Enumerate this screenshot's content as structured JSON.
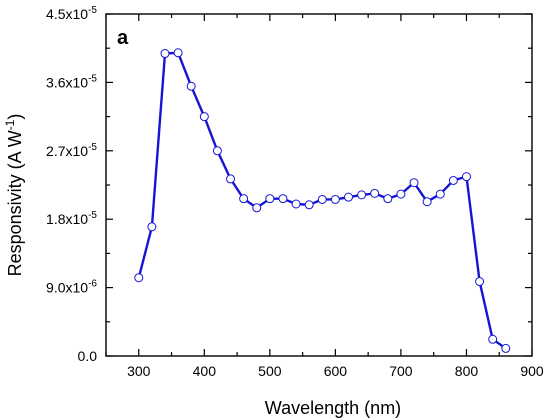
{
  "chart_data": {
    "type": "line",
    "panel_label": "a",
    "xlabel": "Wavelength (nm)",
    "ylabel_main": "Responsivity (A W",
    "ylabel_sup": "-1",
    "ylabel_close": ")",
    "xlim": [
      250,
      900
    ],
    "ylim": [
      0,
      4.5e-05
    ],
    "x_ticks": [
      300,
      400,
      500,
      600,
      700,
      800,
      900
    ],
    "x_tick_labels": [
      "300",
      "400",
      "500",
      "600",
      "700",
      "800",
      "900"
    ],
    "y_ticks": [
      0,
      9e-06,
      1.8e-05,
      2.7e-05,
      3.6e-05,
      4.5e-05
    ],
    "y_tick_labels": [
      {
        "base": "0.0",
        "exp": ""
      },
      {
        "base": "9.0x10",
        "exp": "-6"
      },
      {
        "base": "1.8x10",
        "exp": "-5"
      },
      {
        "base": "2.7x10",
        "exp": "-5"
      },
      {
        "base": "3.6x10",
        "exp": "-5"
      },
      {
        "base": "4.5x10",
        "exp": "-5"
      }
    ],
    "line_color": "#1515d6",
    "marker_fill": "#ffffff",
    "marker_edge": "#1515d6",
    "x": [
      300,
      320,
      340,
      360,
      380,
      400,
      420,
      440,
      460,
      480,
      500,
      520,
      540,
      560,
      580,
      600,
      620,
      640,
      660,
      680,
      700,
      720,
      740,
      760,
      780,
      800,
      820,
      840,
      860
    ],
    "y": [
      1.03e-05,
      1.7e-05,
      3.98e-05,
      3.99e-05,
      3.55e-05,
      3.15e-05,
      2.7e-05,
      2.33e-05,
      2.07e-05,
      1.95e-05,
      2.07e-05,
      2.07e-05,
      2e-05,
      1.99e-05,
      2.06e-05,
      2.06e-05,
      2.09e-05,
      2.12e-05,
      2.14e-05,
      2.07e-05,
      2.13e-05,
      2.28e-05,
      2.03e-05,
      2.13e-05,
      2.31e-05,
      2.36e-05,
      9.8e-06,
      2.2e-06,
      1e-06
    ]
  }
}
